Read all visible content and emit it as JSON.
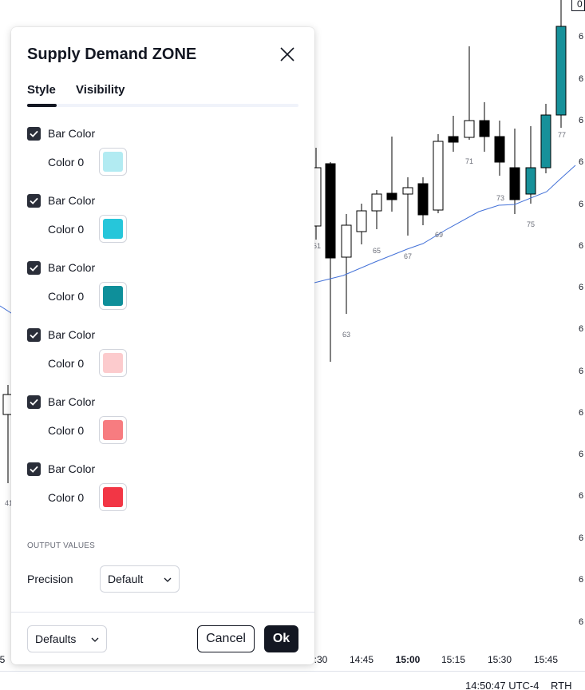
{
  "dialog": {
    "title": "Supply Demand ZONE",
    "close_icon": "close-icon",
    "tabs": [
      {
        "label": "Style",
        "active": true
      },
      {
        "label": "Visibility",
        "active": false
      }
    ],
    "color_rows": [
      {
        "check_label": "Bar Color",
        "checked": true,
        "color_label": "Color 0",
        "color": "#b2ebf2"
      },
      {
        "check_label": "Bar Color",
        "checked": true,
        "color_label": "Color 0",
        "color": "#26c6da"
      },
      {
        "check_label": "Bar Color",
        "checked": true,
        "color_label": "Color 0",
        "color": "#0e8f9a"
      },
      {
        "check_label": "Bar Color",
        "checked": true,
        "color_label": "Color 0",
        "color": "#fccbcd"
      },
      {
        "check_label": "Bar Color",
        "checked": true,
        "color_label": "Color 0",
        "color": "#f77c80"
      },
      {
        "check_label": "Bar Color",
        "checked": true,
        "color_label": "Color 0",
        "color": "#f23645"
      }
    ],
    "output_section": "OUTPUT VALUES",
    "precision_label": "Precision",
    "precision_value": "Default",
    "defaults_value": "Defaults",
    "cancel_label": "Cancel",
    "ok_label": "Ok"
  },
  "chart": {
    "price_labels": [
      "6",
      "6",
      "6",
      "6",
      "6",
      "6",
      "6",
      "6",
      "6",
      "6",
      "6",
      "6",
      "6",
      "6",
      "6"
    ],
    "top_marker": "0",
    "candle_numbers": [
      "41",
      "61",
      "63",
      "65",
      "67",
      "69",
      "71",
      "73",
      "75",
      "77"
    ],
    "time_labels": [
      "5",
      ":30",
      "14:45",
      "15:00",
      "15:15",
      "15:30",
      "15:45"
    ],
    "status_time": "14:50:47 UTC-4",
    "status_session": "RTH",
    "colors": {
      "bull_hollow": "#ffffff",
      "bear": "#000000",
      "teal": "#17919a",
      "ma_line": "#4472d8"
    }
  }
}
